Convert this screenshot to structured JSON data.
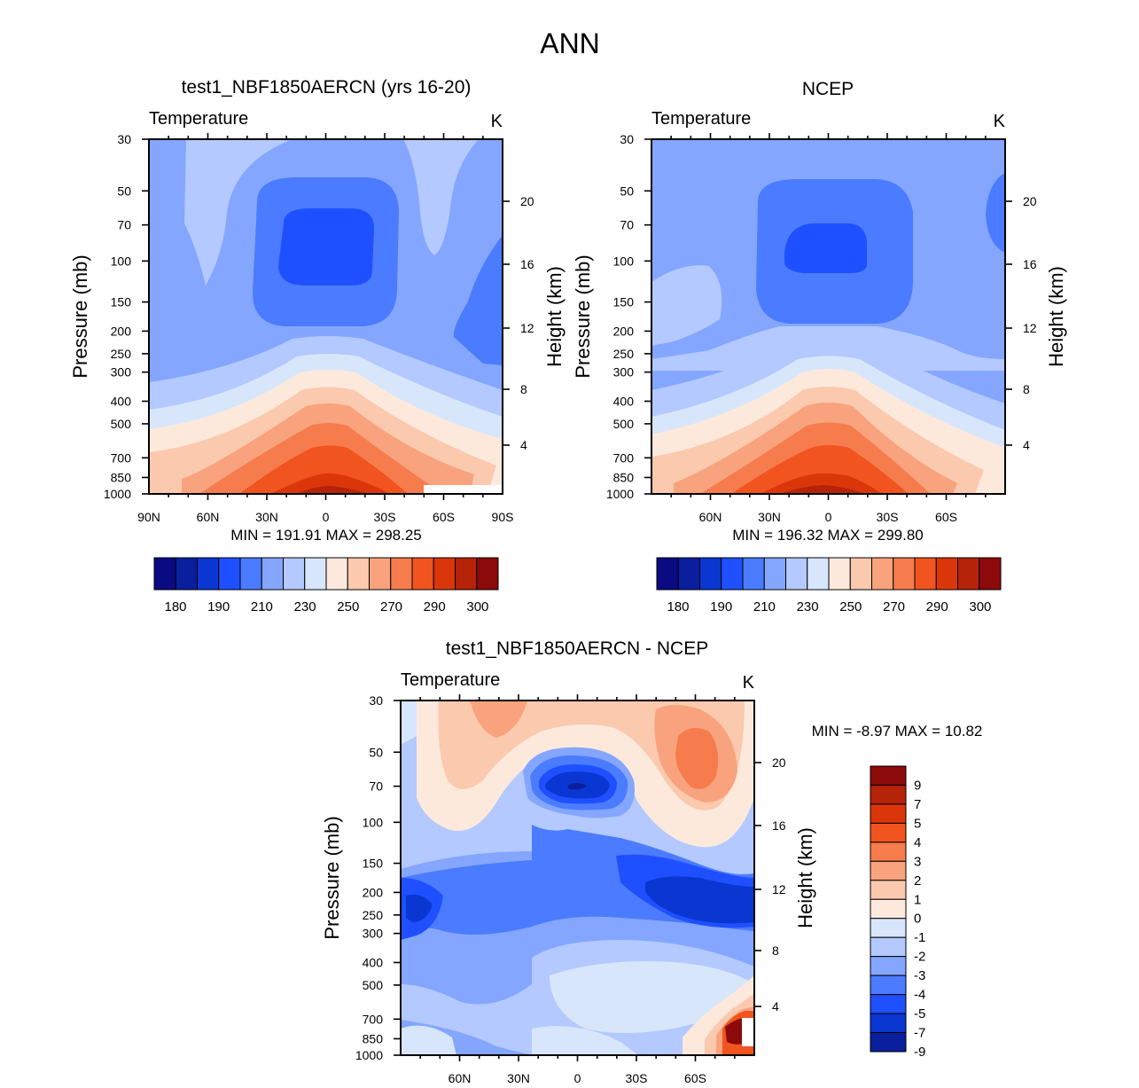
{
  "page_title": "ANN",
  "colors": {
    "full": [
      "#0a0a82",
      "#0a1f9e",
      "#0a36d2",
      "#1e50ff",
      "#4b7bff",
      "#84a6ff",
      "#b3c9ff",
      "#d7e6fb",
      "#fde9dc",
      "#fbc9ae",
      "#f8a37d",
      "#f67c4d",
      "#f1541e",
      "#db3609",
      "#b52308",
      "#8c0a0a"
    ],
    "diff": [
      "#0a1f9e",
      "#0a36d2",
      "#1e50ff",
      "#4b7bff",
      "#84a6ff",
      "#b3c9ff",
      "#d7e6fb",
      "#fde9dc",
      "#fbc9ae",
      "#f8a37d",
      "#f67c4d",
      "#f1541e",
      "#db3609",
      "#b52308",
      "#8c0a0a"
    ]
  },
  "chart_data": [
    {
      "type": "contour",
      "title": "test1_NBF1850AERCN (yrs 16-20)",
      "variable": "Temperature",
      "units": "K",
      "xlabel": "",
      "ylabel": "Pressure (mb)",
      "ylabel_right": "Height (km)",
      "x_ticks": [
        "90N",
        "60N",
        "30N",
        "0",
        "30S",
        "60S",
        "90S"
      ],
      "x_range": [
        90,
        -90
      ],
      "y_ticks": [
        "30",
        "50",
        "70",
        "100",
        "150",
        "200",
        "250",
        "300",
        "400",
        "500",
        "700",
        "850",
        "1000"
      ],
      "y_range_mb": [
        30,
        1000
      ],
      "y_right_ticks": [
        "20",
        "16",
        "12",
        "8",
        "4"
      ],
      "stats": "MIN = 191.91  MAX = 298.25",
      "colorbar_labels": [
        "180",
        "190",
        "210",
        "230",
        "250",
        "270",
        "290",
        "300"
      ],
      "levels": [
        180,
        185,
        190,
        200,
        210,
        220,
        230,
        240,
        250,
        260,
        270,
        280,
        290,
        295,
        300
      ]
    },
    {
      "type": "contour",
      "title": "NCEP",
      "variable": "Temperature",
      "units": "K",
      "xlabel": "",
      "ylabel": "Pressure (mb)",
      "ylabel_right": "Height (km)",
      "x_ticks": [
        "60N",
        "30N",
        "0",
        "30S",
        "60S"
      ],
      "x_range": [
        90,
        -90
      ],
      "y_ticks": [
        "30",
        "50",
        "70",
        "100",
        "150",
        "200",
        "250",
        "300",
        "400",
        "500",
        "700",
        "850",
        "1000"
      ],
      "y_range_mb": [
        30,
        1000
      ],
      "y_right_ticks": [
        "20",
        "16",
        "12",
        "8",
        "4"
      ],
      "stats": "MIN = 196.32  MAX = 299.80",
      "colorbar_labels": [
        "180",
        "190",
        "210",
        "230",
        "250",
        "270",
        "290",
        "300"
      ],
      "levels": [
        180,
        185,
        190,
        200,
        210,
        220,
        230,
        240,
        250,
        260,
        270,
        280,
        290,
        295,
        300
      ]
    },
    {
      "type": "contour",
      "title": "test1_NBF1850AERCN - NCEP",
      "variable": "Temperature",
      "units": "K",
      "xlabel": "",
      "ylabel": "Pressure (mb)",
      "ylabel_right": "Height (km)",
      "x_ticks": [
        "60N",
        "30N",
        "0",
        "30S",
        "60S"
      ],
      "x_range": [
        90,
        -90
      ],
      "y_ticks": [
        "30",
        "50",
        "70",
        "100",
        "150",
        "200",
        "250",
        "300",
        "400",
        "500",
        "700",
        "850",
        "1000"
      ],
      "y_range_mb": [
        30,
        1000
      ],
      "y_right_ticks": [
        "20",
        "16",
        "12",
        "8",
        "4"
      ],
      "stats": "MIN =  -8.97  MAX =  10.82",
      "colorbar_labels": [
        "9",
        "7",
        "5",
        "4",
        "3",
        "2",
        "1",
        "0",
        "-1",
        "-2",
        "-3",
        "-4",
        "-5",
        "-7",
        "-9"
      ],
      "levels": [
        -9,
        -7,
        -5,
        -4,
        -3,
        -2,
        -1,
        0,
        1,
        2,
        3,
        4,
        5,
        7,
        9
      ]
    }
  ]
}
